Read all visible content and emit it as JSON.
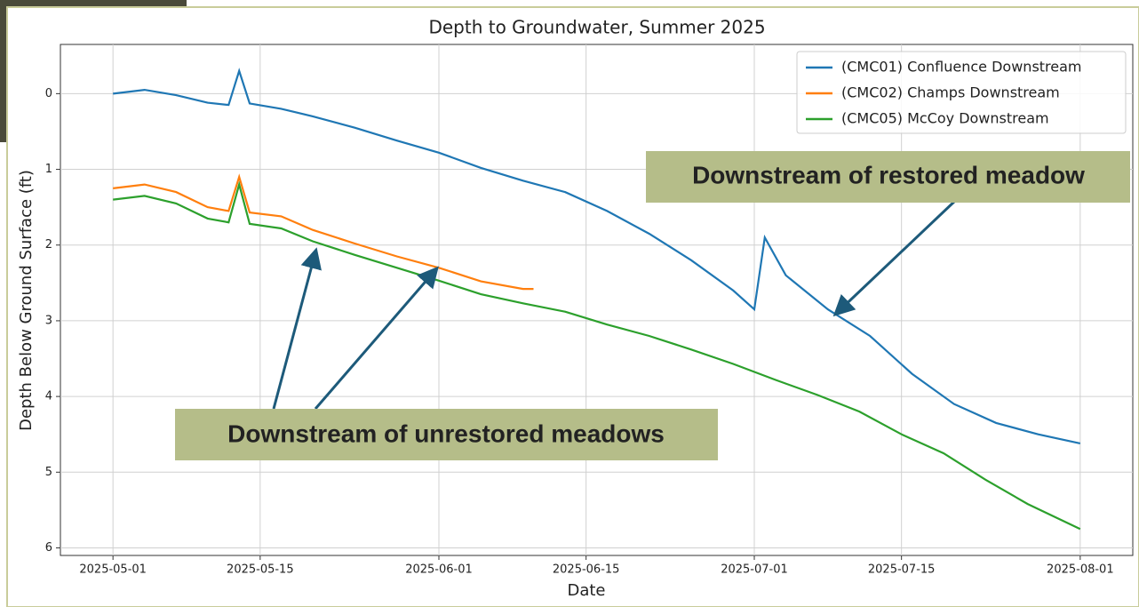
{
  "chart_data": {
    "type": "line",
    "title": "Depth to Groundwater, Summer 2025",
    "x_label": "Date",
    "y_label": "Depth Below Ground Surface (ft)",
    "xlim": [
      "2025-04-26",
      "2025-08-06"
    ],
    "xticks": [
      "2025-05-01",
      "2025-05-15",
      "2025-06-01",
      "2025-06-15",
      "2025-07-01",
      "2025-07-15",
      "2025-08-01"
    ],
    "ylim": [
      -0.65,
      6.1
    ],
    "y_inverted": true,
    "yticks": [
      0,
      1,
      2,
      3,
      4,
      5,
      6
    ],
    "grid": true,
    "legend": "upper right",
    "series": [
      {
        "name": "(CMC01) Confluence Downstream",
        "color": "#1f77b4",
        "x": [
          "2025-05-01",
          "2025-05-04",
          "2025-05-07",
          "2025-05-10",
          "2025-05-12",
          "2025-05-13",
          "2025-05-14",
          "2025-05-17",
          "2025-05-20",
          "2025-05-24",
          "2025-05-28",
          "2025-06-01",
          "2025-06-05",
          "2025-06-09",
          "2025-06-13",
          "2025-06-17",
          "2025-06-21",
          "2025-06-25",
          "2025-06-29",
          "2025-07-01",
          "2025-07-02",
          "2025-07-04",
          "2025-07-08",
          "2025-07-12",
          "2025-07-16",
          "2025-07-20",
          "2025-07-24",
          "2025-07-28",
          "2025-08-01"
        ],
        "values": [
          0.0,
          -0.05,
          0.02,
          0.12,
          0.15,
          -0.3,
          0.13,
          0.2,
          0.3,
          0.45,
          0.62,
          0.78,
          0.98,
          1.15,
          1.3,
          1.55,
          1.85,
          2.2,
          2.6,
          2.85,
          1.9,
          2.4,
          2.85,
          3.2,
          3.7,
          4.1,
          4.35,
          4.5,
          4.62
        ]
      },
      {
        "name": "(CMC02) Champs Downstream",
        "color": "#ff7f0e",
        "x": [
          "2025-05-01",
          "2025-05-04",
          "2025-05-07",
          "2025-05-10",
          "2025-05-12",
          "2025-05-13",
          "2025-05-14",
          "2025-05-17",
          "2025-05-20",
          "2025-05-24",
          "2025-05-28",
          "2025-06-01",
          "2025-06-05",
          "2025-06-09",
          "2025-06-10"
        ],
        "values": [
          1.25,
          1.2,
          1.3,
          1.5,
          1.55,
          1.1,
          1.57,
          1.62,
          1.8,
          1.98,
          2.15,
          2.3,
          2.48,
          2.58,
          2.58
        ]
      },
      {
        "name": "(CMC05) McCoy Downstream",
        "color": "#2ca02c",
        "x": [
          "2025-05-01",
          "2025-05-04",
          "2025-05-07",
          "2025-05-10",
          "2025-05-12",
          "2025-05-13",
          "2025-05-14",
          "2025-05-17",
          "2025-05-20",
          "2025-05-24",
          "2025-05-28",
          "2025-06-01",
          "2025-06-05",
          "2025-06-09",
          "2025-06-13",
          "2025-06-17",
          "2025-06-21",
          "2025-06-25",
          "2025-06-29",
          "2025-07-03",
          "2025-07-07",
          "2025-07-11",
          "2025-07-15",
          "2025-07-19",
          "2025-07-23",
          "2025-07-27",
          "2025-08-01"
        ],
        "values": [
          1.4,
          1.35,
          1.45,
          1.65,
          1.7,
          1.2,
          1.72,
          1.78,
          1.95,
          2.13,
          2.3,
          2.47,
          2.65,
          2.77,
          2.88,
          3.05,
          3.2,
          3.38,
          3.57,
          3.78,
          3.98,
          4.2,
          4.5,
          4.75,
          5.1,
          5.42,
          5.75
        ]
      }
    ],
    "annotations": [
      "Downstream of restored meadow",
      "Downstream of unrestored meadows"
    ]
  }
}
